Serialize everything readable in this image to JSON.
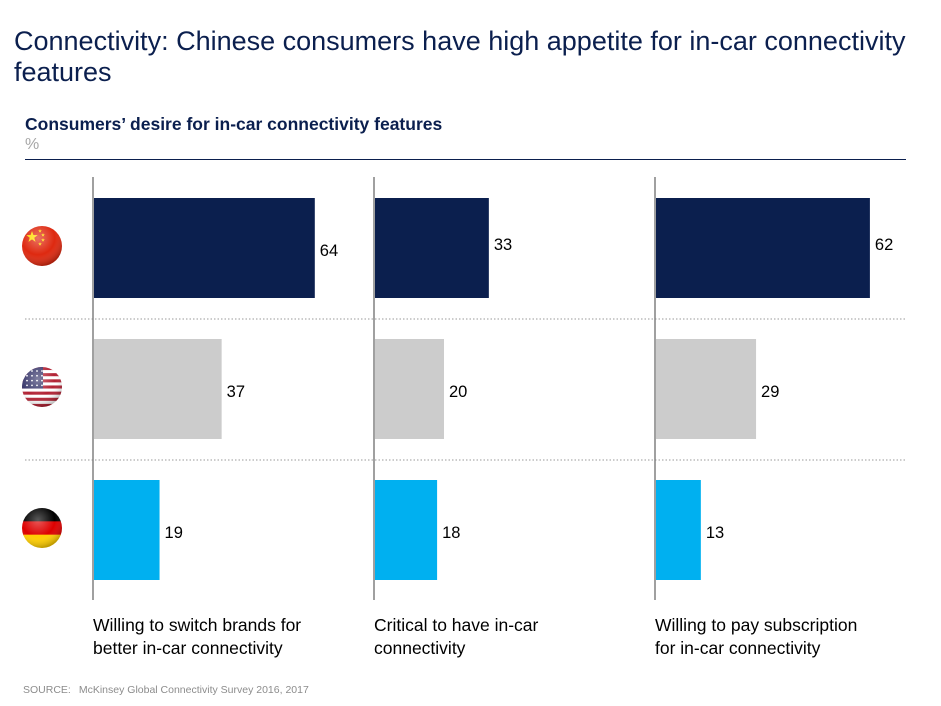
{
  "header": {
    "title": "Connectivity: Chinese consumers have high appetite for in-car connectivity features",
    "subtitle": "Consumers’ desire for in-car connectivity features",
    "unit": "%"
  },
  "footer": {
    "source_label": "SOURCE:",
    "source_text": "McKinsey Global Connectivity Survey 2016, 2017"
  },
  "colors": {
    "china": "#0b1f4e",
    "us": "#cccccc",
    "germany": "#00b0f0"
  },
  "chart_data": {
    "type": "bar",
    "orientation": "horizontal",
    "categories": [
      "Willing to switch brands for better in-car connectivity",
      "Critical to have in-car connectivity",
      "Willing to pay subscription for in-car connectivity"
    ],
    "category_lines": [
      [
        "Willing to switch brands for",
        "better in-car connectivity"
      ],
      [
        "Critical to have in-car",
        "connectivity"
      ],
      [
        "Willing to pay subscription",
        "for in-car connectivity"
      ]
    ],
    "series": [
      {
        "name": "",
        "icon": "china-flag-icon",
        "values": [
          64,
          33,
          62
        ]
      },
      {
        "name": "",
        "icon": "us-flag-icon",
        "values": [
          37,
          20,
          29
        ]
      },
      {
        "name": "",
        "icon": "germany-flag-icon",
        "values": [
          19,
          18,
          13
        ]
      }
    ],
    "grid": false,
    "legend": "flags at left"
  }
}
